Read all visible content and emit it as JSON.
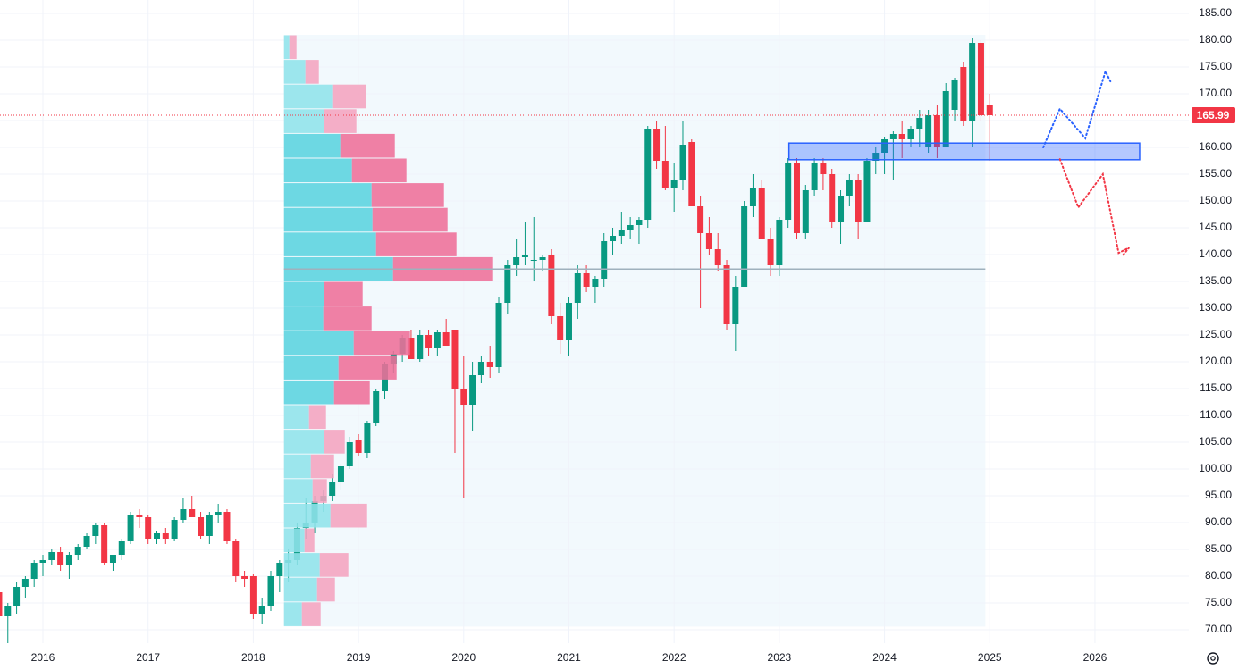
{
  "chart_data": {
    "type": "candlestick",
    "categories": [
      null,
      null,
      null,
      null,
      null,
      "2016",
      null,
      null,
      null,
      null,
      null,
      null,
      null,
      null,
      null,
      null,
      null,
      "2017",
      null,
      null,
      null,
      null,
      null,
      null,
      null,
      null,
      null,
      null,
      null,
      "2018",
      null,
      null,
      null,
      null,
      null,
      null,
      null,
      null,
      null,
      null,
      null,
      "2019",
      null,
      null,
      null,
      null,
      null,
      null,
      null,
      null,
      null,
      null,
      null,
      "2020",
      null,
      null,
      null,
      null,
      null,
      null,
      null,
      null,
      null,
      null,
      null,
      "2021",
      null,
      null,
      null,
      null,
      null,
      null,
      null,
      null,
      null,
      null,
      null,
      "2022",
      null,
      null,
      null,
      null,
      null,
      null,
      null,
      null,
      null,
      null,
      null,
      "2023",
      null,
      null,
      null,
      null,
      null,
      null,
      null,
      null,
      null,
      null,
      null,
      "2024",
      null,
      null,
      null,
      null,
      null,
      null,
      null,
      null,
      null,
      null,
      null,
      "2025",
      null,
      null,
      null,
      null,
      null,
      null,
      null,
      null,
      null,
      null,
      null,
      "2026",
      null,
      null,
      null,
      null,
      null,
      null,
      null,
      null,
      null,
      null
    ],
    "open": [
      77,
      72.5,
      74.5,
      78,
      79.5,
      82.5,
      83,
      84.5,
      82,
      84,
      85.5,
      87.5,
      89.5,
      82.5,
      84,
      86.5,
      91.5,
      91,
      87,
      88,
      87,
      90.5,
      92.5,
      91,
      87.5,
      91.5,
      92,
      86.5,
      80,
      80,
      73,
      74.5,
      80,
      82.5,
      83,
      89,
      90,
      94,
      95,
      97.5,
      100.5,
      105.5,
      103,
      108.5,
      114.5,
      119.5,
      121.5,
      124.5,
      120.5,
      125,
      122.5,
      125.5,
      126,
      115,
      112,
      117.5,
      120,
      119,
      131,
      138,
      139.5,
      139,
      139,
      140,
      128.5,
      124,
      131,
      136.5,
      134,
      135.5,
      142.5,
      143.5,
      144.5,
      145.5,
      146.5,
      163.5,
      157.5,
      152.5,
      154,
      161,
      149,
      144,
      141,
      138,
      127,
      134,
      149,
      152.5,
      143,
      138,
      146.5,
      157,
      144,
      152,
      157,
      155,
      146,
      151,
      154,
      146,
      157.5,
      159,
      161.5,
      162.5,
      161.5,
      163.5,
      160,
      166,
      160,
      167,
      175,
      165,
      179.5,
      168,
      null,
      null,
      null,
      null,
      null,
      null,
      null,
      null,
      null,
      null,
      null,
      null,
      null,
      null,
      null,
      null,
      null,
      null,
      null,
      null,
      null,
      null
    ],
    "high": [
      78,
      75,
      79,
      80,
      83,
      84,
      85,
      85.5,
      84.5,
      86,
      88,
      90,
      90,
      84,
      87,
      92,
      92.5,
      91.5,
      88.5,
      89,
      91,
      94.5,
      95,
      92,
      92,
      93.5,
      92.5,
      87,
      81,
      80.5,
      76,
      81,
      83,
      85,
      90,
      94.5,
      95,
      96,
      99,
      101,
      106,
      106.5,
      109,
      115,
      120,
      122,
      125,
      126,
      126,
      126,
      126,
      128,
      126,
      121,
      120,
      121,
      123,
      132,
      139,
      143,
      146,
      147,
      140,
      141,
      131,
      132,
      138,
      138,
      136,
      144,
      145,
      148,
      147,
      147,
      164,
      165,
      164,
      157,
      165,
      161.5,
      151,
      147,
      144,
      139,
      136,
      150,
      155,
      154,
      145,
      147,
      158,
      158,
      153,
      158,
      158,
      156,
      152,
      155,
      155,
      158,
      160,
      162,
      163,
      165,
      164,
      167,
      167,
      168,
      172,
      173,
      176,
      180.5,
      180,
      170,
      null,
      null,
      null,
      null,
      null,
      null,
      null,
      null,
      null,
      null,
      null,
      null,
      null,
      null,
      null,
      null,
      null,
      null,
      null,
      null,
      null,
      null
    ],
    "low": [
      72,
      67.5,
      73,
      76,
      78,
      80,
      82,
      81,
      79.5,
      83,
      85,
      86,
      82,
      81,
      83,
      86,
      89,
      86,
      86,
      86,
      86.5,
      90,
      91,
      87,
      86,
      90,
      86,
      79,
      78,
      72,
      71,
      73.5,
      77,
      79,
      82,
      87,
      88,
      92,
      94,
      96,
      100,
      102.5,
      102,
      108,
      113,
      118,
      120,
      120.5,
      120,
      121,
      121,
      123,
      103,
      94.5,
      107,
      116,
      117,
      118,
      129,
      136,
      138,
      135,
      137,
      127,
      121.5,
      121,
      128,
      133,
      131,
      134,
      140,
      142,
      143,
      142,
      145,
      156,
      152,
      148,
      152,
      149,
      130,
      140,
      137,
      126,
      122,
      134,
      147,
      143,
      136,
      136,
      145,
      143,
      143,
      151,
      152,
      145,
      142,
      149,
      143,
      146,
      155,
      155,
      154,
      158,
      160,
      160,
      159,
      158,
      160,
      165,
      164,
      160,
      165,
      157.5,
      null,
      null,
      null,
      null,
      null,
      null,
      null,
      null,
      null,
      null,
      null,
      null,
      null,
      null,
      null,
      null,
      null,
      null,
      null,
      null,
      null,
      null
    ],
    "close": [
      72.5,
      74.5,
      78,
      79.5,
      82.5,
      83,
      84.5,
      82,
      84,
      85.5,
      87.5,
      89.5,
      82.5,
      84,
      86.5,
      91.5,
      91,
      87,
      88,
      87,
      90.5,
      92.5,
      91,
      87.5,
      91.5,
      92,
      86.5,
      80,
      79.5,
      73,
      74.5,
      80,
      82.5,
      83,
      89,
      90,
      94,
      95,
      97.5,
      100.5,
      105,
      103,
      108.5,
      114.5,
      119.5,
      121.5,
      124.5,
      120.5,
      125,
      122.5,
      125.5,
      123,
      115,
      112,
      117.5,
      120,
      119,
      131,
      138,
      139.5,
      140,
      139,
      139.5,
      128.5,
      124,
      131,
      136.5,
      134,
      135.5,
      142.5,
      143.5,
      144.5,
      145.5,
      146.5,
      163.5,
      157.5,
      152.5,
      154,
      160.5,
      149,
      144,
      141,
      138,
      127,
      134,
      149,
      152.5,
      143,
      138,
      146.5,
      157,
      144,
      152,
      157,
      155,
      146,
      151,
      154,
      146,
      157.5,
      159,
      161.5,
      162.5,
      161.5,
      163.5,
      165.5,
      166,
      160,
      170.5,
      172.5,
      165,
      179.5,
      166,
      166,
      null,
      null,
      null,
      null,
      null,
      null,
      null,
      null,
      null,
      null,
      null,
      null,
      null,
      null,
      null,
      null,
      null,
      null,
      null,
      null,
      null,
      null
    ],
    "up_color": "#089981",
    "down_color": "#f23645",
    "ylim": [
      67.5,
      187.5
    ],
    "yticks": [
      {
        "value": 70,
        "label": "70.00"
      },
      {
        "value": 75,
        "label": "75.00"
      },
      {
        "value": 80,
        "label": "80.00"
      },
      {
        "value": 85,
        "label": "85.00"
      },
      {
        "value": 90,
        "label": "90.00"
      },
      {
        "value": 95,
        "label": "95.00"
      },
      {
        "value": 100,
        "label": "100.00"
      },
      {
        "value": 105,
        "label": "105.00"
      },
      {
        "value": 110,
        "label": "110.00"
      },
      {
        "value": 115,
        "label": "115.00"
      },
      {
        "value": 120,
        "label": "120.00"
      },
      {
        "value": 125,
        "label": "125.00"
      },
      {
        "value": 130,
        "label": "130.00"
      },
      {
        "value": 135,
        "label": "135.00"
      },
      {
        "value": 140,
        "label": "140.00"
      },
      {
        "value": 145,
        "label": "145.00"
      },
      {
        "value": 150,
        "label": "150.00"
      },
      {
        "value": 155,
        "label": "155.00"
      },
      {
        "value": 160,
        "label": "160.00"
      },
      {
        "value": 165,
        "label": "165.00"
      },
      {
        "value": 170,
        "label": "170.00"
      },
      {
        "value": 175,
        "label": "175.00"
      },
      {
        "value": 180,
        "label": "180.00"
      },
      {
        "value": 185,
        "label": "185.00"
      }
    ],
    "grid": true,
    "last_price": 165.99,
    "last_price_color": "#f23645",
    "volume_profile": {
      "x": [
        32.5,
        112.5
      ],
      "bins": [
        70.6,
        75.2,
        79.8,
        84.4,
        89,
        93.6,
        98.2,
        102.8,
        107.4,
        112,
        116.6,
        121.2,
        125.8,
        130.4,
        135,
        139.6,
        144.2,
        148.8,
        153.4,
        158,
        162.6,
        167.2,
        171.8,
        176.4,
        181
      ],
      "up": [
        20,
        37,
        40,
        23,
        52,
        32,
        30,
        45,
        28,
        56,
        61,
        78,
        44,
        45,
        122,
        103,
        99,
        98,
        76,
        63,
        45,
        54,
        24,
        6
      ],
      "down": [
        21,
        20,
        32,
        11,
        41,
        16,
        26,
        23,
        19,
        40,
        65,
        63,
        54,
        43,
        111,
        90,
        84,
        81,
        61,
        61,
        36,
        38,
        15,
        8
      ],
      "value_area": [
        112,
        162.6
      ],
      "poc": 137.3,
      "up_color": "#5ad3df",
      "down_color": "#ee6e98",
      "up_color_outside": "#8fe2eb",
      "down_color_outside": "#f4a3bf"
    },
    "zone": {
      "x": [
        90.1,
        130.1
      ],
      "range": [
        157.7,
        160.8
      ],
      "color": "#2962ff"
    },
    "projections": [
      {
        "color": "#2962ff",
        "x": [
          119.1,
          121,
          123.9,
          126.2,
          126.8
        ],
        "values": [
          160,
          167.2,
          161.7,
          174.2,
          172.2
        ]
      },
      {
        "color": "#f23645",
        "x": [
          121,
          123.1,
          125.9,
          127.7,
          128.9,
          128.1
        ],
        "values": [
          157.8,
          148.8,
          155,
          140.3,
          141.3,
          139.7
        ]
      }
    ]
  }
}
